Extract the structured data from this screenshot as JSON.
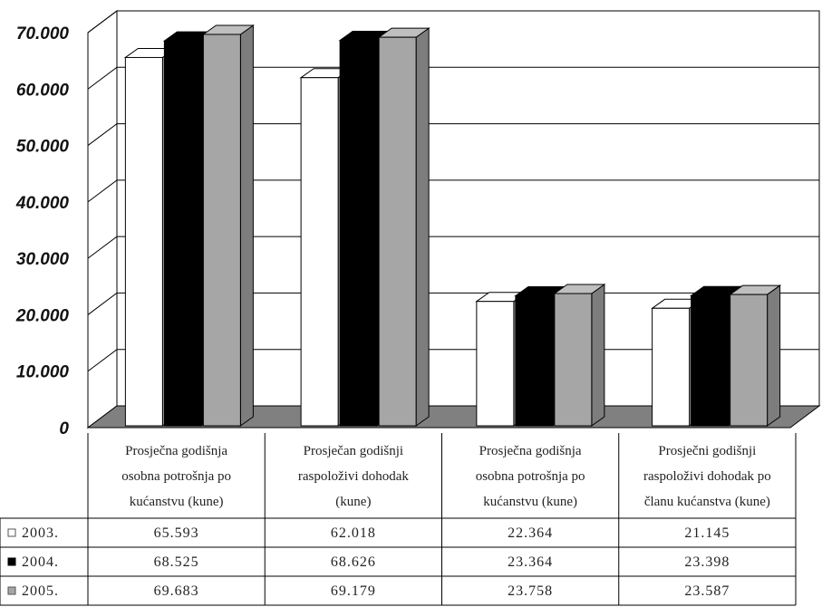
{
  "chart_data": {
    "type": "bar",
    "categories": [
      [
        "Prosječna godišnja",
        "osobna potrošnja po",
        "kućanstvu (kune)"
      ],
      [
        "Prosječan godišnji",
        "raspoloživi dohodak",
        "(kune)"
      ],
      [
        "Prosječna godišnja",
        "osobna potrošnja po",
        "kućanstvu (kune)"
      ],
      [
        "Prosječni godišnji",
        "raspoloživi dohodak po",
        "članu kućanstva (kune)"
      ]
    ],
    "series": [
      {
        "name": "2003.",
        "values": [
          65593,
          62018,
          22364,
          21145
        ],
        "labels": [
          "65.593",
          "62.018",
          "22.364",
          "21.145"
        ],
        "color": "#ffffff"
      },
      {
        "name": "2004.",
        "values": [
          68525,
          68626,
          23364,
          23398
        ],
        "labels": [
          "68.525",
          "68.626",
          "23.364",
          "23.398"
        ],
        "color": "#000000"
      },
      {
        "name": "2005.",
        "values": [
          69683,
          69179,
          23758,
          23587
        ],
        "labels": [
          "69.683",
          "69.179",
          "23.758",
          "23.587"
        ],
        "color": "#a6a6a6"
      }
    ],
    "ylim": [
      0,
      70000
    ],
    "yticks": [
      "0",
      "10.000",
      "20.000",
      "30.000",
      "40.000",
      "50.000",
      "60.000",
      "70.000"
    ],
    "grid": true,
    "legend": "data-table"
  }
}
